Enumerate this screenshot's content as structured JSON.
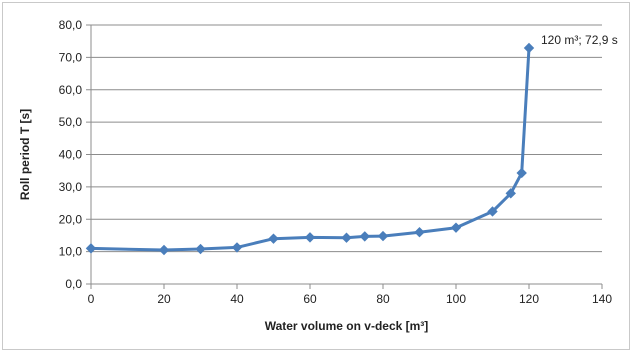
{
  "chart_data": {
    "type": "line",
    "title": "",
    "xlabel": "Water volume on v-deck [m³]",
    "ylabel": "Roll period T [s]",
    "xlim": [
      0,
      140
    ],
    "ylim": [
      0,
      80
    ],
    "x_ticks": [
      "0",
      "20",
      "40",
      "60",
      "80",
      "100",
      "120",
      "140"
    ],
    "y_ticks": [
      "0,0",
      "10,0",
      "20,0",
      "30,0",
      "40,0",
      "50,0",
      "60,0",
      "70,0",
      "80,0"
    ],
    "grid": "horizontal",
    "legend": "none",
    "color": "#4a7ebb",
    "series": [
      {
        "x": [
          0,
          20,
          30,
          40,
          50,
          60,
          70,
          75,
          80,
          90,
          100,
          110,
          115,
          118,
          120
        ],
        "y": [
          11.0,
          10.5,
          10.8,
          11.3,
          14.0,
          14.4,
          14.3,
          14.7,
          14.8,
          16.0,
          17.4,
          22.4,
          28.0,
          34.3,
          72.9
        ]
      }
    ],
    "annotations": [
      {
        "x": 120,
        "y": 72.9,
        "text": "120 m³; 72,9 s"
      }
    ]
  }
}
